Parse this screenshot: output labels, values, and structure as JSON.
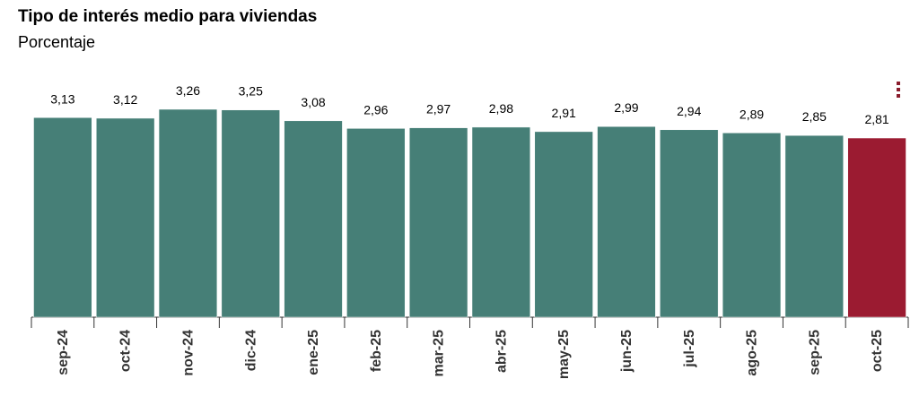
{
  "header": {
    "title": "Tipo de interés medio para viviendas",
    "subtitle": "Porcentaje"
  },
  "menu": {
    "icon": "more-vertical-icon"
  },
  "colors": {
    "bar": "#467f77",
    "highlight": "#9b1b31",
    "axis": "#333333",
    "label": "#000000"
  },
  "chart_data": {
    "type": "bar",
    "title": "Tipo de interés medio para viviendas",
    "subtitle": "Porcentaje",
    "xlabel": "",
    "ylabel": "",
    "categories": [
      "sep-24",
      "oct-24",
      "nov-24",
      "dic-24",
      "ene-25",
      "feb-25",
      "mar-25",
      "abr-25",
      "may-25",
      "jun-25",
      "jul-25",
      "ago-25",
      "sep-25",
      "oct-25"
    ],
    "values": [
      3.13,
      3.12,
      3.26,
      3.25,
      3.08,
      2.96,
      2.97,
      2.98,
      2.91,
      2.99,
      2.94,
      2.89,
      2.85,
      2.81
    ],
    "value_labels": [
      "3,13",
      "3,12",
      "3,26",
      "3,25",
      "3,08",
      "2,96",
      "2,97",
      "2,98",
      "2,91",
      "2,99",
      "2,94",
      "2,89",
      "2,85",
      "2,81"
    ],
    "highlight_index": 13,
    "ylim": [
      0,
      3.26
    ],
    "grid": false,
    "legend": "none"
  }
}
